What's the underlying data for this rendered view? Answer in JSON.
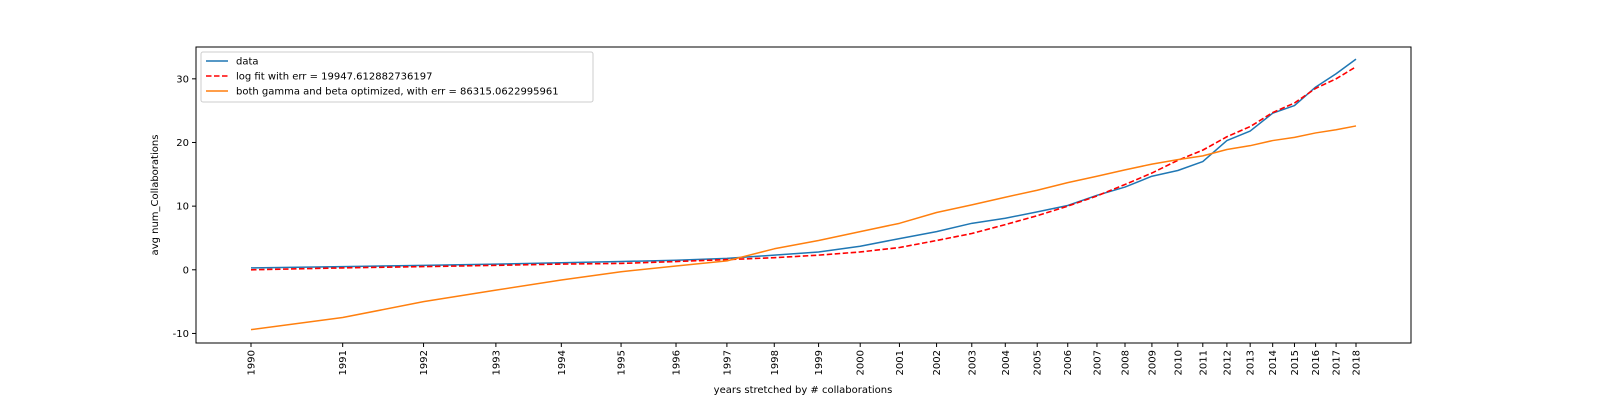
{
  "chart_data": {
    "type": "line",
    "xlabel": "years stretched by # collaborations",
    "ylabel": "avg num_Collaborations",
    "ylim": [
      -11.5,
      35
    ],
    "yticks": [
      -10,
      0,
      10,
      20,
      30
    ],
    "grid": false,
    "legend_position": "top-left",
    "x_years": [
      1990,
      1991,
      1992,
      1993,
      1994,
      1995,
      1996,
      1997,
      1998,
      1999,
      2000,
      2001,
      2002,
      2003,
      2004,
      2005,
      2006,
      2007,
      2008,
      2009,
      2010,
      2011,
      2012,
      2013,
      2014,
      2015,
      2016,
      2017,
      2018
    ],
    "series": [
      {
        "name": "data",
        "color": "#1f77b4",
        "dashed": false,
        "values": [
          0.3,
          0.5,
          0.7,
          0.9,
          1.1,
          1.3,
          1.5,
          1.8,
          2.3,
          2.8,
          3.7,
          4.9,
          6.0,
          7.3,
          8.1,
          9.1,
          10.1,
          11.7,
          13.0,
          14.7,
          15.6,
          17.0,
          20.3,
          21.8,
          24.6,
          25.8,
          28.7,
          30.8,
          33.1
        ]
      },
      {
        "name": "log fit with err = 19947.612882736197",
        "color": "#ff0000",
        "dashed": true,
        "values": [
          0.0,
          0.3,
          0.5,
          0.7,
          0.9,
          1.0,
          1.3,
          1.6,
          1.9,
          2.3,
          2.8,
          3.5,
          4.6,
          5.7,
          7.1,
          8.5,
          10.0,
          11.6,
          13.4,
          15.2,
          17.2,
          18.8,
          20.9,
          22.5,
          24.7,
          26.2,
          28.5,
          30.0,
          31.9
        ]
      },
      {
        "name": "both gamma and beta optimized, with err = 86315.0622995961",
        "color": "#ff7f0e",
        "dashed": false,
        "values": [
          -9.4,
          -7.5,
          -5.0,
          -3.2,
          -1.6,
          -0.3,
          0.6,
          1.4,
          3.3,
          4.6,
          6.0,
          7.3,
          9.0,
          10.2,
          11.4,
          12.5,
          13.7,
          14.7,
          15.7,
          16.6,
          17.3,
          17.9,
          18.9,
          19.5,
          20.3,
          20.8,
          21.5,
          22.0,
          22.6
        ]
      }
    ]
  }
}
